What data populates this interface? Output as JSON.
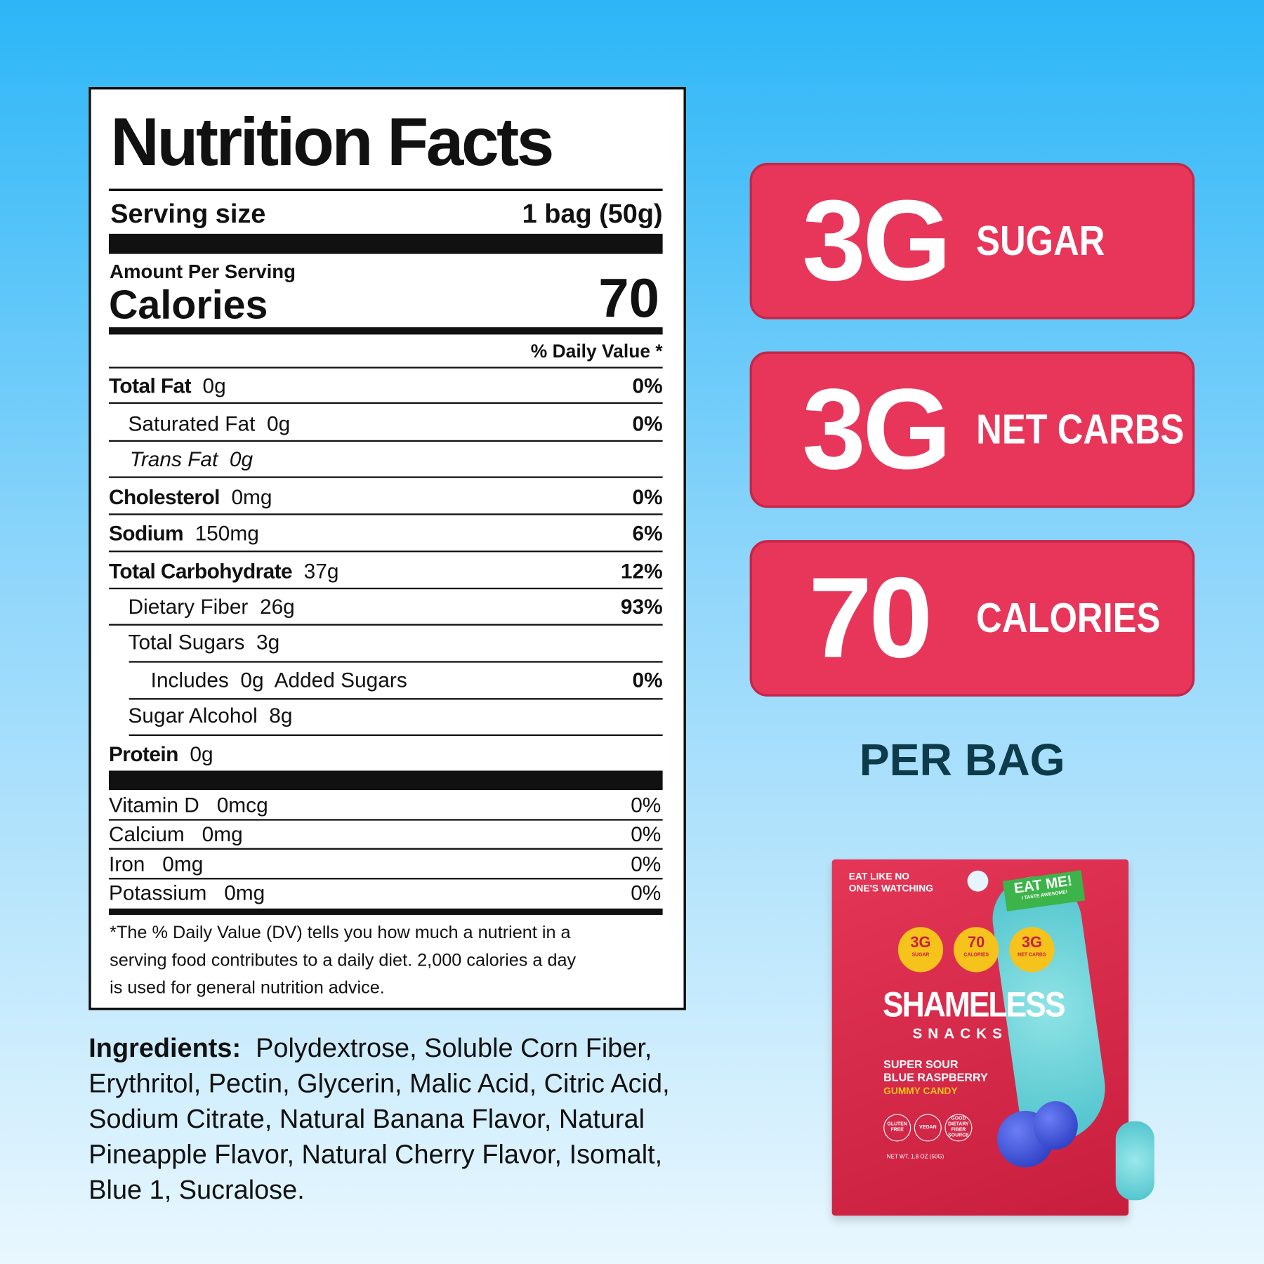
{
  "nutrition_facts": {
    "title": "Nutrition Facts",
    "serving_size_label": "Serving size",
    "serving_size": "1 bag (50g)",
    "amount_per_serving": "Amount Per Serving",
    "calories_label": "Calories",
    "calories": "70",
    "daily_value_header": "% Daily Value *",
    "nutrients": [
      {
        "name": "Total Fat",
        "amount": "0g",
        "dv": "0%"
      },
      {
        "name": "Saturated Fat",
        "amount": "0g",
        "dv": "0%"
      },
      {
        "name": "Trans Fat",
        "amount": "0g"
      },
      {
        "name": "Cholesterol",
        "amount": "0mg",
        "dv": "0%"
      },
      {
        "name": "Sodium",
        "amount": "150mg",
        "dv": "6%"
      },
      {
        "name": "Total Carbohydrate",
        "amount": "37g",
        "dv": "12%"
      },
      {
        "name": "Dietary Fiber",
        "amount": "26g",
        "dv": "93%"
      },
      {
        "name": "Total Sugars",
        "amount": "3g"
      },
      {
        "name": "Added Sugars",
        "prefix": "Includes",
        "amount": "0g",
        "dv": "0%"
      },
      {
        "name": "Sugar Alcohol",
        "amount": "8g"
      },
      {
        "name": "Protein",
        "amount": "0g"
      }
    ],
    "vitamins": [
      {
        "name": "Vitamin D",
        "amount": "0mcg",
        "dv": "0%"
      },
      {
        "name": "Calcium",
        "amount": "0mg",
        "dv": "0%"
      },
      {
        "name": "Iron",
        "amount": "0mg",
        "dv": "0%"
      },
      {
        "name": "Potassium",
        "amount": "0mg",
        "dv": "0%"
      }
    ],
    "footnote": [
      "*The % Daily Value (DV) tells you how much a nutrient in a",
      "serving food contributes to a daily diet. 2,000 calories a day",
      "is used for general nutrition advice."
    ]
  },
  "ingredients": {
    "label": "Ingredients:",
    "text": "Polydextrose, Soluble Corn Fiber, Erythritol, Pectin, Glycerin, Malic Acid, Citric Acid, Sodium Citrate, Natural Banana Flavor, Natural Pineapple Flavor, Natural Cherry Flavor, Isomalt, Blue 1, Sucralose."
  },
  "highlights": [
    {
      "value": "3G",
      "label": "SUGAR"
    },
    {
      "value": "3G",
      "label": "NET CARBS"
    },
    {
      "value": "70",
      "label": "CALORIES"
    }
  ],
  "per_bag": "PER BAG",
  "package": {
    "tagline": [
      "EAT LIKE NO",
      "ONE'S WATCHING"
    ],
    "sticker": "EAT ME!",
    "sticker_sub": "I TASTE AWESOME!",
    "badges": [
      {
        "value": "3G",
        "label": "SUGAR"
      },
      {
        "value": "70",
        "label": "CALORIES"
      },
      {
        "value": "3G",
        "label": "NET CARBS"
      }
    ],
    "brand": "SHAMELESS",
    "brand_sub": "SNACKS",
    "flavor": [
      "SUPER SOUR",
      "BLUE RASPBERRY"
    ],
    "kind": "GUMMY CANDY",
    "claims": [
      "GLUTEN FREE",
      "VEGAN",
      "GOOD DIETARY FIBER SOURCE"
    ],
    "net_weight": "NET WT. 1.8 OZ (50G)"
  }
}
